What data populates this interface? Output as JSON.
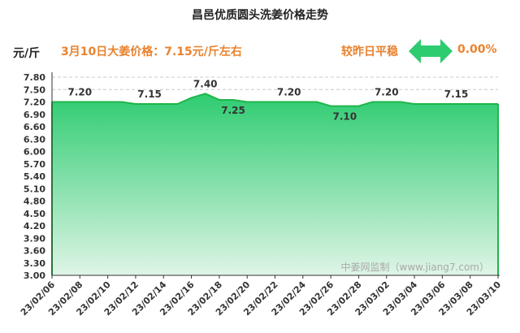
{
  "header": {
    "title": "昌邑优质圆头洗姜价格走势",
    "unit": "元/斤",
    "price_note": "3月10日大姜价格：7.15元/斤左右",
    "trend_label": "较昨日平稳",
    "change": "0.00%"
  },
  "watermark": "中姜网监制（www.jiang7.com）",
  "colors": {
    "accent_orange": "#e8822e",
    "line_green": "#1fb54a",
    "fill_top": "#2ecc71",
    "fill_bottom": "#dff5e6",
    "arrow_green": "#2ecc71"
  },
  "chart_data": {
    "type": "area",
    "title": "昌邑优质圆头洗姜价格走势",
    "ylabel": "元/斤",
    "xlabel": "",
    "ylim": [
      3.0,
      7.8
    ],
    "yticks": [
      "3.00",
      "3.30",
      "3.60",
      "3.90",
      "4.20",
      "4.50",
      "4.80",
      "5.10",
      "5.40",
      "5.70",
      "6.00",
      "6.30",
      "6.60",
      "6.90",
      "7.20",
      "7.50",
      "7.80"
    ],
    "x": [
      "23/02/06",
      "23/02/07",
      "23/02/08",
      "23/02/09",
      "23/02/10",
      "23/02/11",
      "23/02/12",
      "23/02/13",
      "23/02/14",
      "23/02/15",
      "23/02/16",
      "23/02/17",
      "23/02/18",
      "23/02/19",
      "23/02/20",
      "23/02/21",
      "23/02/22",
      "23/02/23",
      "23/02/24",
      "23/02/25",
      "23/02/26",
      "23/02/27",
      "23/02/28",
      "23/03/01",
      "23/03/02",
      "23/03/03",
      "23/03/04",
      "23/03/05",
      "23/03/06",
      "23/03/07",
      "23/03/08",
      "23/03/09",
      "23/03/10"
    ],
    "xticks": [
      "23/02/06",
      "23/02/08",
      "23/02/10",
      "23/02/12",
      "23/02/14",
      "23/02/16",
      "23/02/18",
      "23/02/20",
      "23/02/22",
      "23/02/24",
      "23/02/26",
      "23/02/28",
      "23/03/02",
      "23/03/04",
      "23/03/06",
      "23/03/08",
      "23/03/10"
    ],
    "values": [
      7.2,
      7.2,
      7.2,
      7.2,
      7.2,
      7.2,
      7.15,
      7.15,
      7.15,
      7.15,
      7.3,
      7.4,
      7.25,
      7.25,
      7.2,
      7.2,
      7.2,
      7.2,
      7.2,
      7.2,
      7.1,
      7.1,
      7.1,
      7.2,
      7.2,
      7.2,
      7.15,
      7.15,
      7.15,
      7.15,
      7.15,
      7.15,
      7.15
    ],
    "data_labels": [
      {
        "index": 2,
        "text": "7.20",
        "pos": "above"
      },
      {
        "index": 7,
        "text": "7.15",
        "pos": "above"
      },
      {
        "index": 11,
        "text": "7.40",
        "pos": "above"
      },
      {
        "index": 13,
        "text": "7.25",
        "pos": "below"
      },
      {
        "index": 17,
        "text": "7.20",
        "pos": "above"
      },
      {
        "index": 21,
        "text": "7.10",
        "pos": "below"
      },
      {
        "index": 24,
        "text": "7.20",
        "pos": "above"
      },
      {
        "index": 29,
        "text": "7.15",
        "pos": "above"
      }
    ],
    "grid": "dashed at top",
    "legend": "none"
  }
}
